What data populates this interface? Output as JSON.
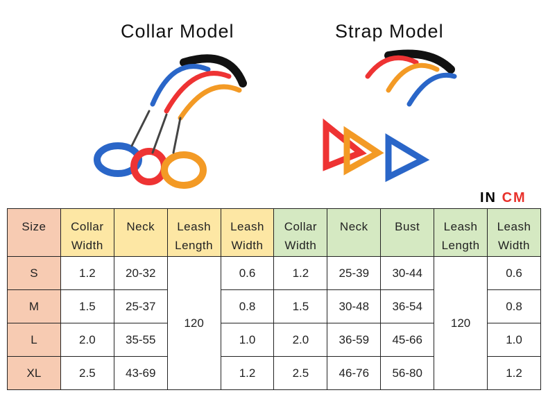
{
  "titles": {
    "collar": "Collar Model",
    "strap": "Strap Model"
  },
  "unit": {
    "prefix": "IN",
    "unit": "CM"
  },
  "table": {
    "header": [
      "Size",
      "Collar Width",
      "Neck",
      "Leash Length",
      "Leash Width",
      "Collar Width",
      "Neck",
      "Bust",
      "Leash Length",
      "Leash Width"
    ],
    "rows": [
      [
        "S",
        "1.2",
        "20-32",
        "0.6",
        "1.2",
        "25-39",
        "30-44",
        "0.6"
      ],
      [
        "M",
        "1.5",
        "25-37",
        "0.8",
        "1.5",
        "30-48",
        "36-54",
        "0.8"
      ],
      [
        "L",
        "2.0",
        "35-55",
        "1.0",
        "2.0",
        "36-59",
        "45-66",
        "1.0"
      ],
      [
        "XL",
        "2.5",
        "43-69",
        "1.2",
        "2.5",
        "46-76",
        "56-80",
        "1.2"
      ]
    ],
    "collar_leash_length": "120",
    "strap_leash_length": "120"
  }
}
